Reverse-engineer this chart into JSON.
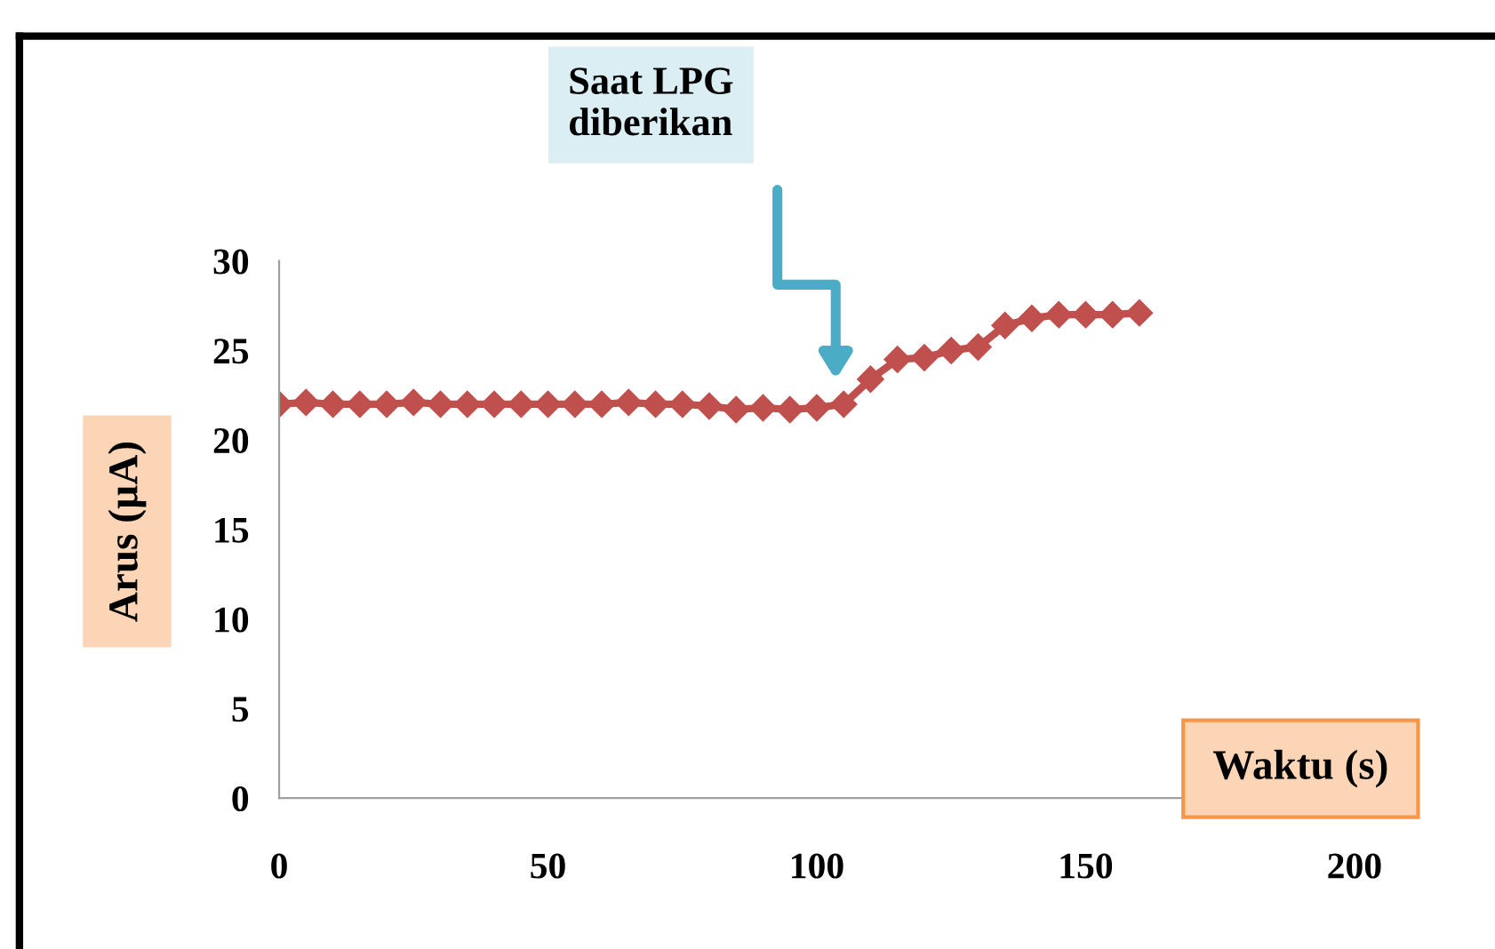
{
  "chart_data": {
    "type": "line",
    "xlabel": "Waktu (s)",
    "ylabel": "Arus (µA)",
    "x": [
      0,
      5,
      10,
      15,
      20,
      25,
      30,
      35,
      40,
      45,
      50,
      55,
      60,
      65,
      70,
      75,
      80,
      85,
      90,
      95,
      100,
      105,
      110,
      115,
      120,
      125,
      130,
      135,
      140,
      145,
      150,
      155,
      160
    ],
    "series": [
      {
        "color": "#c0504d",
        "values": [
          22.0,
          22.1,
          22.0,
          22.0,
          22.0,
          22.1,
          22.0,
          22.0,
          22.0,
          22.0,
          22.0,
          22.0,
          22.0,
          22.1,
          22.0,
          22.0,
          21.9,
          21.7,
          21.8,
          21.7,
          21.8,
          22.0,
          23.4,
          24.5,
          24.6,
          25.0,
          25.2,
          26.4,
          26.8,
          27.0,
          27.0,
          27.0,
          27.1
        ]
      }
    ],
    "marker": "diamond",
    "line_style": "solid",
    "grid": false,
    "legend": false,
    "xlim": [
      0,
      200
    ],
    "xticks": [
      0,
      50,
      100,
      150,
      200
    ],
    "ylim": [
      0,
      30
    ],
    "yticks": [
      0,
      5,
      10,
      15,
      20,
      25,
      30
    ],
    "annotations": [
      "Saat LPG\ndiberikan"
    ]
  }
}
